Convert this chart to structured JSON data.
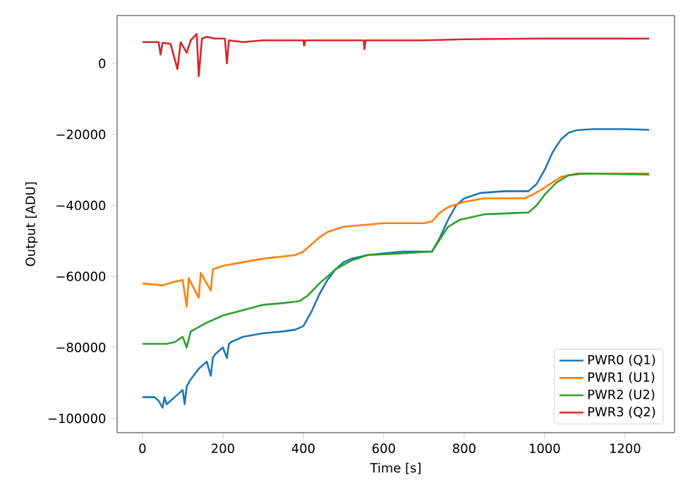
{
  "chart_data": {
    "type": "line",
    "xlabel": "Time [s]",
    "ylabel": "Output [ADU]",
    "xlim": [
      -63,
      1323
    ],
    "ylim": [
      -104000,
      13500
    ],
    "xticks": [
      0,
      200,
      400,
      600,
      800,
      1000,
      1200
    ],
    "yticks": [
      {
        "value": -100000,
        "label": "−100000"
      },
      {
        "value": -80000,
        "label": "−80000"
      },
      {
        "value": -60000,
        "label": "−60000"
      },
      {
        "value": -40000,
        "label": "−40000"
      },
      {
        "value": -20000,
        "label": "−20000"
      },
      0
    ],
    "legend": "bottom right",
    "grid": false,
    "marker": "none",
    "line_style": "solid",
    "series": [
      {
        "name": "PWR0 (Q1)",
        "color": "#1f77b4",
        "x": [
          0,
          30,
          40,
          50,
          55,
          60,
          80,
          100,
          105,
          110,
          120,
          140,
          160,
          170,
          175,
          180,
          200,
          210,
          215,
          220,
          250,
          300,
          350,
          380,
          400,
          420,
          440,
          460,
          480,
          500,
          520,
          560,
          600,
          650,
          720,
          740,
          760,
          780,
          800,
          840,
          900,
          960,
          980,
          1000,
          1020,
          1040,
          1060,
          1080,
          1120,
          1200,
          1260
        ],
        "values": [
          -94000,
          -94000,
          -95000,
          -97000,
          -94000,
          -96000,
          -94000,
          -92000,
          -96000,
          -91000,
          -89000,
          -86000,
          -84000,
          -88000,
          -83000,
          -82000,
          -80000,
          -83000,
          -79000,
          -78500,
          -77000,
          -76000,
          -75500,
          -75000,
          -74000,
          -70000,
          -65000,
          -61000,
          -58000,
          -56000,
          -55000,
          -54000,
          -53500,
          -53000,
          -53000,
          -49000,
          -44000,
          -40000,
          -38000,
          -36500,
          -36000,
          -36000,
          -34000,
          -30000,
          -25000,
          -21500,
          -19500,
          -18800,
          -18500,
          -18500,
          -18700
        ]
      },
      {
        "name": "PWR1 (U1)",
        "color": "#ff7f0e",
        "x": [
          0,
          50,
          80,
          100,
          110,
          115,
          140,
          145,
          170,
          175,
          200,
          250,
          300,
          380,
          400,
          420,
          440,
          460,
          500,
          550,
          600,
          700,
          720,
          740,
          760,
          800,
          850,
          950,
          970,
          1000,
          1040,
          1080,
          1260
        ],
        "values": [
          -62000,
          -62500,
          -61500,
          -61000,
          -68500,
          -60500,
          -66000,
          -59000,
          -64000,
          -58000,
          -57000,
          -56000,
          -55000,
          -54000,
          -53000,
          -51000,
          -49000,
          -47500,
          -46000,
          -45500,
          -45000,
          -45000,
          -44500,
          -42000,
          -40500,
          -39000,
          -38000,
          -38000,
          -37000,
          -35000,
          -32000,
          -31000,
          -31000
        ]
      },
      {
        "name": "PWR2 (U2)",
        "color": "#2ca02c",
        "x": [
          0,
          60,
          80,
          100,
          110,
          120,
          160,
          200,
          250,
          300,
          350,
          390,
          410,
          440,
          480,
          520,
          560,
          650,
          720,
          740,
          760,
          790,
          850,
          960,
          980,
          1000,
          1030,
          1060,
          1100,
          1260
        ],
        "values": [
          -79000,
          -79000,
          -78500,
          -77000,
          -80000,
          -75500,
          -73000,
          -71000,
          -69500,
          -68000,
          -67500,
          -67000,
          -65500,
          -62000,
          -58000,
          -55500,
          -54000,
          -53500,
          -53000,
          -49500,
          -46000,
          -44000,
          -42500,
          -42000,
          -40000,
          -37000,
          -33500,
          -31500,
          -31000,
          -31300
        ]
      },
      {
        "name": "PWR3 (Q2)",
        "color": "#d62728",
        "x": [
          0,
          40,
          45,
          50,
          70,
          87,
          95,
          110,
          120,
          135,
          140,
          148,
          160,
          180,
          205,
          210,
          215,
          250,
          300,
          400,
          402,
          405,
          550,
          552,
          555,
          700,
          800,
          1000,
          1260
        ],
        "values": [
          6000,
          6000,
          2500,
          5800,
          5500,
          -1600,
          6000,
          3000,
          6500,
          8300,
          -3600,
          7000,
          7500,
          7000,
          7000,
          0,
          6500,
          6000,
          6500,
          6500,
          5000,
          6500,
          6500,
          4000,
          6500,
          6500,
          6800,
          7000,
          7000
        ]
      }
    ]
  }
}
